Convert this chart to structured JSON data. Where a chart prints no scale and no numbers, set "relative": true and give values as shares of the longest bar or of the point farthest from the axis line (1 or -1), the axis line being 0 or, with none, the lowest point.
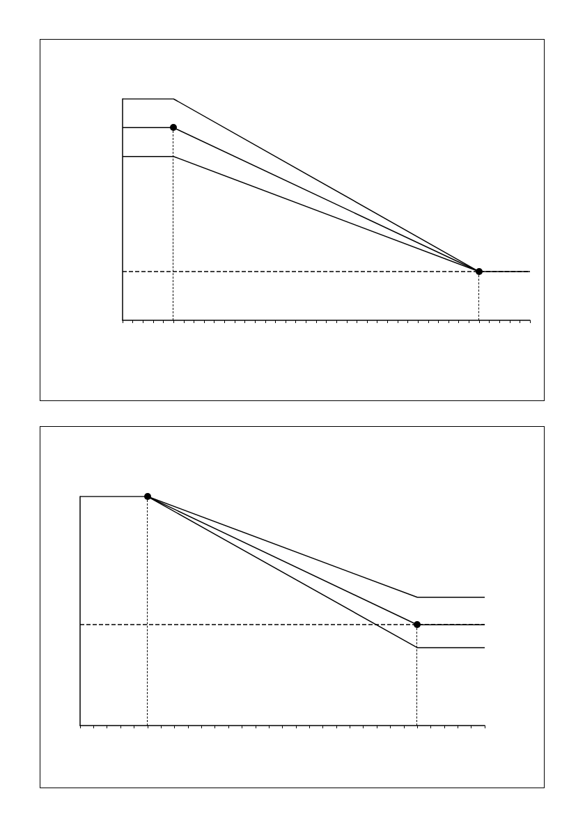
{
  "chart_data": [
    {
      "type": "line",
      "relative": true,
      "grid": false,
      "categories": [
        null,
        null,
        null,
        null,
        null,
        null,
        null,
        null,
        null,
        null,
        null,
        null,
        null,
        null,
        null,
        null,
        null,
        null,
        null,
        null,
        null,
        null,
        null,
        null,
        null,
        null,
        null,
        null,
        null,
        null,
        null,
        null,
        null,
        null,
        null,
        null,
        null,
        null,
        null,
        null,
        null
      ],
      "ref_lines": [
        {
          "axis": "y",
          "value": 0.22,
          "color": "#000000",
          "line_style": "dashed"
        }
      ],
      "series": [
        {
          "color": "#000000",
          "values": [
            1,
            null,
            null,
            null,
            null,
            1,
            null,
            null,
            null,
            null,
            null,
            null,
            null,
            null,
            null,
            null,
            null,
            null,
            null,
            null,
            null,
            null,
            null,
            null,
            null,
            null,
            null,
            null,
            null,
            null,
            null,
            null,
            null,
            null,
            null,
            0.22,
            null,
            null,
            null,
            null,
            null
          ]
        },
        {
          "color": "#000000",
          "values": [
            0.87,
            null,
            null,
            null,
            null,
            0.87,
            null,
            null,
            null,
            null,
            null,
            null,
            null,
            null,
            null,
            null,
            null,
            null,
            null,
            null,
            null,
            null,
            null,
            null,
            null,
            null,
            null,
            null,
            null,
            null,
            null,
            null,
            null,
            null,
            null,
            0.22,
            null,
            null,
            null,
            null,
            0.22
          ]
        },
        {
          "color": "#000000",
          "values": [
            0.74,
            null,
            null,
            null,
            null,
            0.74,
            null,
            null,
            null,
            null,
            null,
            null,
            null,
            null,
            null,
            null,
            null,
            null,
            null,
            null,
            null,
            null,
            null,
            null,
            null,
            null,
            null,
            null,
            null,
            null,
            null,
            null,
            null,
            null,
            null,
            0.22,
            null,
            null,
            null,
            null,
            null
          ]
        }
      ]
    },
    {
      "type": "line",
      "relative": true,
      "grid": false,
      "categories": [
        null,
        null,
        null,
        null,
        null,
        null,
        null,
        null,
        null,
        null,
        null,
        null,
        null,
        null,
        null,
        null,
        null,
        null,
        null,
        null,
        null,
        null,
        null,
        null,
        null,
        null,
        null,
        null,
        null,
        null,
        null
      ],
      "ref_lines": [
        {
          "axis": "y",
          "value": 0.44,
          "color": "#000000",
          "line_style": "dashed"
        }
      ],
      "series": [
        {
          "color": "#000000",
          "values": [
            1,
            null,
            null,
            null,
            null,
            1,
            null,
            null,
            null,
            null,
            null,
            null,
            null,
            null,
            null,
            null,
            null,
            null,
            null,
            null,
            null,
            null,
            null,
            null,
            null,
            0.56,
            null,
            null,
            null,
            null,
            0.56
          ]
        },
        {
          "color": "#000000",
          "values": [
            null,
            null,
            null,
            null,
            null,
            1,
            null,
            null,
            null,
            null,
            null,
            null,
            null,
            null,
            null,
            null,
            null,
            null,
            null,
            null,
            null,
            null,
            null,
            null,
            null,
            0.44,
            null,
            null,
            null,
            null,
            0.44
          ]
        },
        {
          "color": "#000000",
          "values": [
            null,
            null,
            null,
            null,
            null,
            1,
            null,
            null,
            null,
            null,
            null,
            null,
            null,
            null,
            null,
            null,
            null,
            null,
            null,
            null,
            null,
            null,
            null,
            null,
            null,
            0.34,
            null,
            null,
            null,
            null,
            0.34
          ]
        }
      ]
    }
  ]
}
